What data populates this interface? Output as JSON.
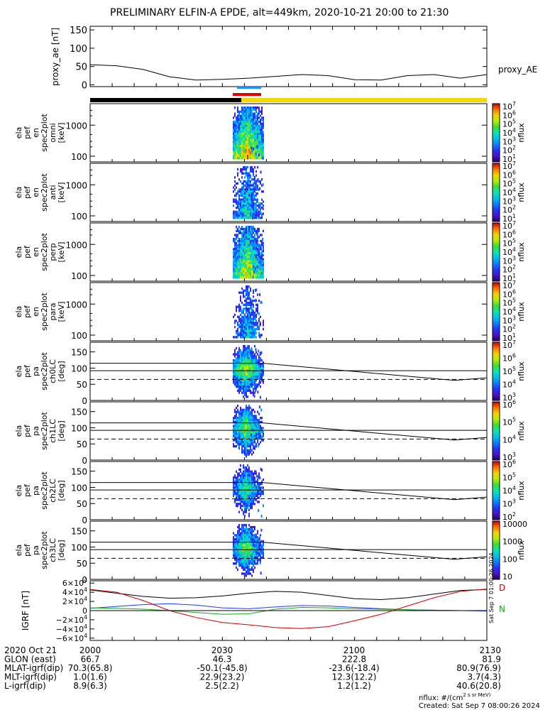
{
  "title": "PRELIMINARY ELFIN-A EPDE, alt=449km, 2020-10-21 20:00 to 21:30",
  "colors": {
    "axes": "#000000",
    "bar_night": "#000000",
    "bar_day": "#f5d800",
    "seg_blue": "#1e90ff",
    "seg_red": "#e60000",
    "grf_x": "#000000",
    "grf_y": "#1e3cff",
    "grf_z": "#1aa51a",
    "grf_t": "#d00000"
  },
  "chart_data": [
    {
      "type": "line",
      "panel": "proxy_ae",
      "ylabel": "proxy_ae [nT]",
      "series_label": "proxy_AE",
      "ylim": [
        -5,
        160
      ],
      "yticks": [
        "0",
        "50",
        "100",
        "150"
      ],
      "x": [
        0,
        6,
        12,
        18,
        24,
        30,
        36,
        42,
        48,
        54,
        60,
        66,
        72,
        78,
        84,
        90
      ],
      "values": [
        55,
        52,
        42,
        22,
        13,
        15,
        18,
        23,
        28,
        25,
        14,
        13,
        25,
        28,
        18,
        28
      ]
    },
    {
      "type": "heatmap",
      "panel": "en omni",
      "ylabel": "ela pef en spec2plot omni [keV]",
      "yscale": "log",
      "yticks": [
        "100",
        "1000"
      ],
      "colorbar": {
        "label": "nflux",
        "labels": [
          "10^1",
          "10^2",
          "10^3",
          "10^4",
          "10^5",
          "10^6",
          "10^7"
        ]
      }
    },
    {
      "type": "heatmap",
      "panel": "en anti",
      "ylabel": "ela pef en spec2plot anti [keV]",
      "yscale": "log",
      "yticks": [
        "100",
        "1000"
      ],
      "colorbar": {
        "label": "nflux",
        "labels": [
          "10^1",
          "10^2",
          "10^3",
          "10^4",
          "10^5",
          "10^6",
          "10^7"
        ]
      }
    },
    {
      "type": "heatmap",
      "panel": "en perp",
      "ylabel": "ela pef en spec2plot perp [keV]",
      "yscale": "log",
      "yticks": [
        "100",
        "1000"
      ],
      "colorbar": {
        "label": "nflux",
        "labels": [
          "10^1",
          "10^2",
          "10^3",
          "10^4",
          "10^5",
          "10^6",
          "10^7"
        ]
      }
    },
    {
      "type": "heatmap",
      "panel": "en para",
      "ylabel": "ela pef en spec2plot para [keV]",
      "yscale": "log",
      "yticks": [
        "100",
        "1000"
      ],
      "colorbar": {
        "label": "nflux",
        "labels": [
          "10^1",
          "10^2",
          "10^3",
          "10^4",
          "10^5",
          "10^6",
          "10^7"
        ]
      }
    },
    {
      "type": "heatmap",
      "panel": "pa ch0LC",
      "ylabel": "ela pef pa spec2plot ch0LC [deg]",
      "yticks": [
        "0",
        "50",
        "100",
        "150"
      ],
      "colorbar": {
        "label": "nflux",
        "labels": [
          "10^3",
          "10^4",
          "10^5",
          "10^6",
          "10^7"
        ]
      }
    },
    {
      "type": "heatmap",
      "panel": "pa ch1LC",
      "ylabel": "ela pef pa spec2plot ch1LC [deg]",
      "yticks": [
        "0",
        "50",
        "100",
        "150"
      ],
      "colorbar": {
        "label": "nflux",
        "labels": [
          "10^3",
          "10^4",
          "10^5",
          "10^6"
        ]
      }
    },
    {
      "type": "heatmap",
      "panel": "pa ch2LC",
      "ylabel": "ela pef pa spec2plot ch2LC [deg]",
      "yticks": [
        "0",
        "50",
        "100",
        "150"
      ],
      "colorbar": {
        "label": "nflux",
        "labels": [
          "10^2",
          "10^3",
          "10^4",
          "10^5",
          "10^6"
        ]
      }
    },
    {
      "type": "heatmap",
      "panel": "pa ch3LC",
      "ylabel": "ela pef pa spec2plot ch3LC [deg]",
      "yticks": [
        "0",
        "50",
        "100",
        "150"
      ],
      "colorbar": {
        "label": "nflux",
        "labels": [
          "10",
          "100",
          "1000",
          "10000"
        ]
      }
    },
    {
      "type": "line",
      "panel": "IGRF",
      "ylabel": "IGRF [nT]",
      "ylim": [
        -65000,
        65000
      ],
      "yticks": [
        "6×10^4",
        "4×10^4",
        "2×10^4",
        "0",
        "−2×10^4",
        "−4×10^4",
        "−6×10^4"
      ],
      "legend": [
        "D",
        "N"
      ],
      "x": [
        0,
        6,
        12,
        18,
        24,
        30,
        36,
        42,
        48,
        54,
        60,
        66,
        72,
        78,
        84,
        90
      ],
      "series": [
        {
          "values": [
            45000,
            38000,
            31000,
            27000,
            28000,
            32000,
            38000,
            42000,
            40000,
            33000,
            26000,
            24000,
            28000,
            36000,
            44000,
            46000
          ]
        },
        {
          "values": [
            5000,
            9000,
            13000,
            15000,
            12000,
            6000,
            4000,
            8000,
            11000,
            10000,
            7000,
            4000,
            2000,
            1000,
            0,
            -1000
          ]
        },
        {
          "values": [
            6000,
            5000,
            3000,
            0,
            -4000,
            -8000,
            -7000,
            3000,
            7000,
            6000,
            4000,
            3000,
            2000,
            1000,
            0,
            0
          ]
        },
        {
          "values": [
            46000,
            40000,
            22000,
            0,
            -15000,
            -26000,
            -31000,
            -37000,
            -39000,
            -35000,
            -22000,
            -8000,
            10000,
            28000,
            42000,
            47000
          ]
        }
      ]
    }
  ],
  "time_ticks": [
    "2000",
    "2030",
    "2100",
    "2130"
  ],
  "footer": {
    "rows": [
      {
        "label": "2020 Oct 21",
        "values": [
          "2000",
          "2030",
          "2100",
          "2130"
        ]
      },
      {
        "label": "GLON (east)",
        "values": [
          "66.7",
          "46.3",
          "222.8",
          "81.9"
        ]
      },
      {
        "label": "MLAT-igrf(dip)",
        "values": [
          "70.3(65.8)",
          "-50.1(-45.8)",
          "-23.6(-18.4)",
          "80.9(76.9)"
        ]
      },
      {
        "label": "MLT-igrf(dip)",
        "values": [
          "1.0(1.6)",
          "22.9(23.2)",
          "12.3(12.2)",
          "3.7(4.3)"
        ]
      },
      {
        "label": "L-igrf(dip)",
        "values": [
          "8.9(6.3)",
          "2.5(2.2)",
          "1.2(1.2)",
          "40.6(20.8)"
        ]
      }
    ],
    "units_note": "nflux: #/(cm^2 s sr MeV)",
    "created": "Created: Sat Sep  7 08:00:26 2024",
    "side_stamp": "Sat Sep  7 01:00:26 2024"
  }
}
